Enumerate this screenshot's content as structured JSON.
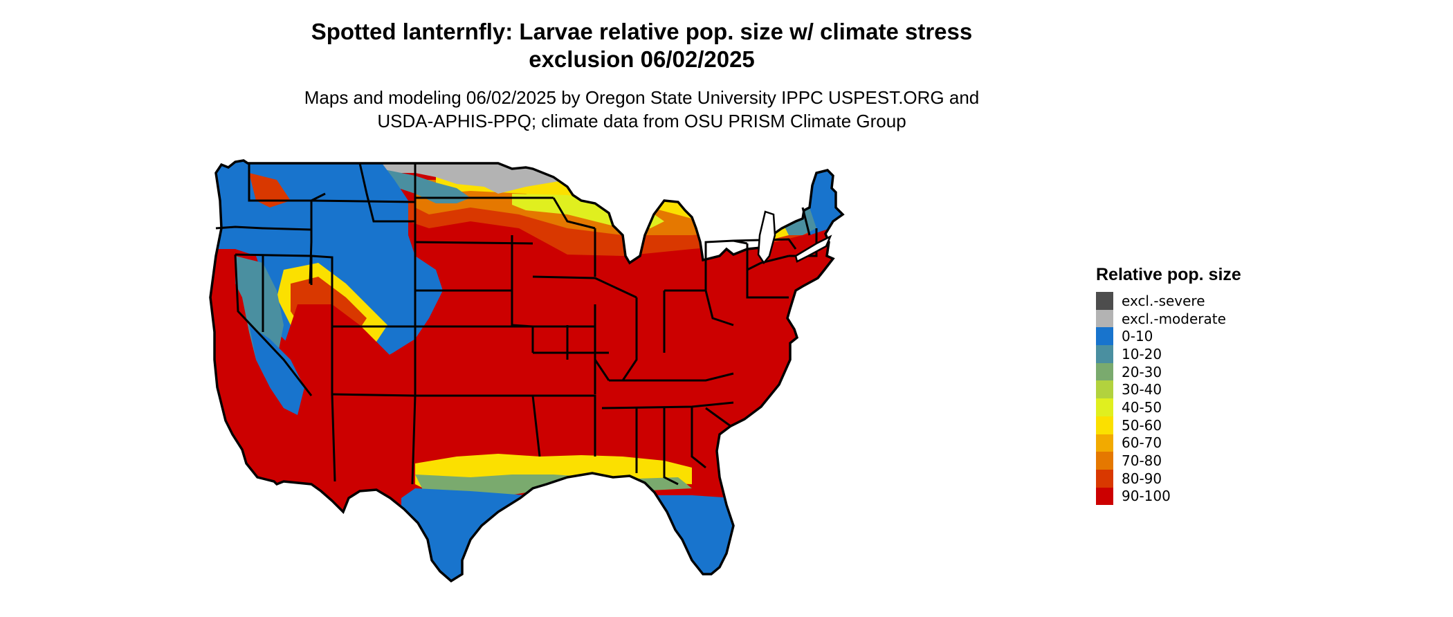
{
  "title": {
    "line1": "Spotted lanternfly: Larvae relative pop. size w/ climate stress",
    "line2": "exclusion 06/02/2025"
  },
  "subtitle": {
    "line1": "Maps and modeling 06/02/2025 by Oregon State University IPPC USPEST.ORG and",
    "line2": "USDA-APHIS-PPQ; climate data from OSU PRISM Climate Group"
  },
  "legend": {
    "title": "Relative pop. size",
    "items": [
      {
        "label": "excl.-severe",
        "color": "#4d4d4d"
      },
      {
        "label": "excl.-moderate",
        "color": "#b3b3b3"
      },
      {
        "label": "0-10",
        "color": "#1874cd"
      },
      {
        "label": "10-20",
        "color": "#4a8fa0"
      },
      {
        "label": "20-30",
        "color": "#7aaa6e"
      },
      {
        "label": "30-40",
        "color": "#b2d23e"
      },
      {
        "label": "40-50",
        "color": "#e0ef1f"
      },
      {
        "label": "50-60",
        "color": "#fbe000"
      },
      {
        "label": "60-70",
        "color": "#f2aa00"
      },
      {
        "label": "70-80",
        "color": "#e57800"
      },
      {
        "label": "80-90",
        "color": "#d93800"
      },
      {
        "label": "90-100",
        "color": "#cc0000"
      }
    ]
  },
  "map": {
    "region": "Contiguous United States",
    "background_color": "#ffffff",
    "boundary_color": "#000000"
  }
}
